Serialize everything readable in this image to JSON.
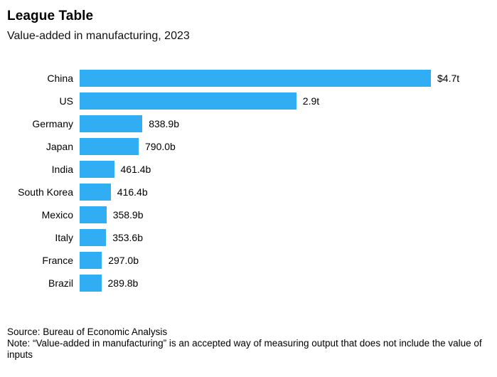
{
  "chart_data": {
    "type": "bar",
    "orientation": "horizontal",
    "title": "League Table",
    "subtitle": "Value-added in manufacturing, 2023",
    "categories": [
      "China",
      "US",
      "Germany",
      "Japan",
      "India",
      "South Korea",
      "Mexico",
      "Italy",
      "France",
      "Brazil"
    ],
    "values_billions_usd": [
      4700,
      2900,
      838.9,
      790.0,
      461.4,
      416.4,
      358.9,
      353.6,
      297.0,
      289.8
    ],
    "value_labels": [
      "$4.7t",
      "2.9t",
      "838.9b",
      "790.0b",
      "461.4b",
      "416.4b",
      "358.9b",
      "353.6b",
      "297.0b",
      "289.8b"
    ],
    "xlim": [
      0,
      4700
    ],
    "bar_color": "#31AEF3",
    "grid": false,
    "legend": false,
    "source": "Source: Bureau of Economic Analysis",
    "note": "Note: “Value-added in manufacturing” is an accepted way of measuring output that does not include the value of inputs"
  }
}
